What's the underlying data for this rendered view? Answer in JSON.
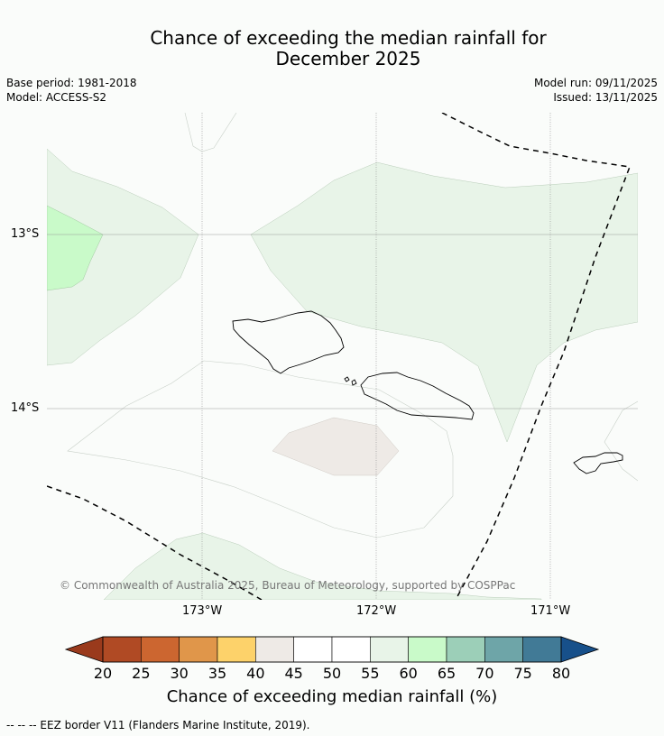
{
  "title_line1": "Chance of exceeding the median rainfall for",
  "title_line2": "December 2025",
  "meta": {
    "base_period": "Base period: 1981-2018",
    "model": "Model: ACCESS-S2",
    "model_run": "Model run: 09/11/2025",
    "issued": "Issued: 13/11/2025"
  },
  "map": {
    "lat_labels": [
      "13°S",
      "14°S"
    ],
    "lon_labels": [
      "173°W",
      "172°W",
      "171°W"
    ],
    "copyright": "© Commonwealth of Australia 2025, Bureau of Meteorology, supported by COSPPac",
    "colors": {
      "c45_50": "#ffffff",
      "c55_60": "#e8f4e8",
      "c60_65": "#c9fac9",
      "c40_45": "#eeeae6"
    }
  },
  "colorbar": {
    "labels": [
      "20",
      "25",
      "30",
      "35",
      "40",
      "45",
      "50",
      "55",
      "60",
      "65",
      "70",
      "75",
      "80"
    ],
    "colors": [
      "#b04a24",
      "#cc6630",
      "#e0964a",
      "#fdd26a",
      "#eeeae6",
      "#ffffff",
      "#ffffff",
      "#e8f4e8",
      "#c9fac9",
      "#9ccfb8",
      "#6ea5a8",
      "#417a96"
    ],
    "under_color": "#9a3a1c",
    "over_color": "#17508a",
    "title": "Chance of exceeding median rainfall (%)"
  },
  "legend_footer": "--  --  -- EEZ border V11 (Flanders Marine Institute, 2019)."
}
